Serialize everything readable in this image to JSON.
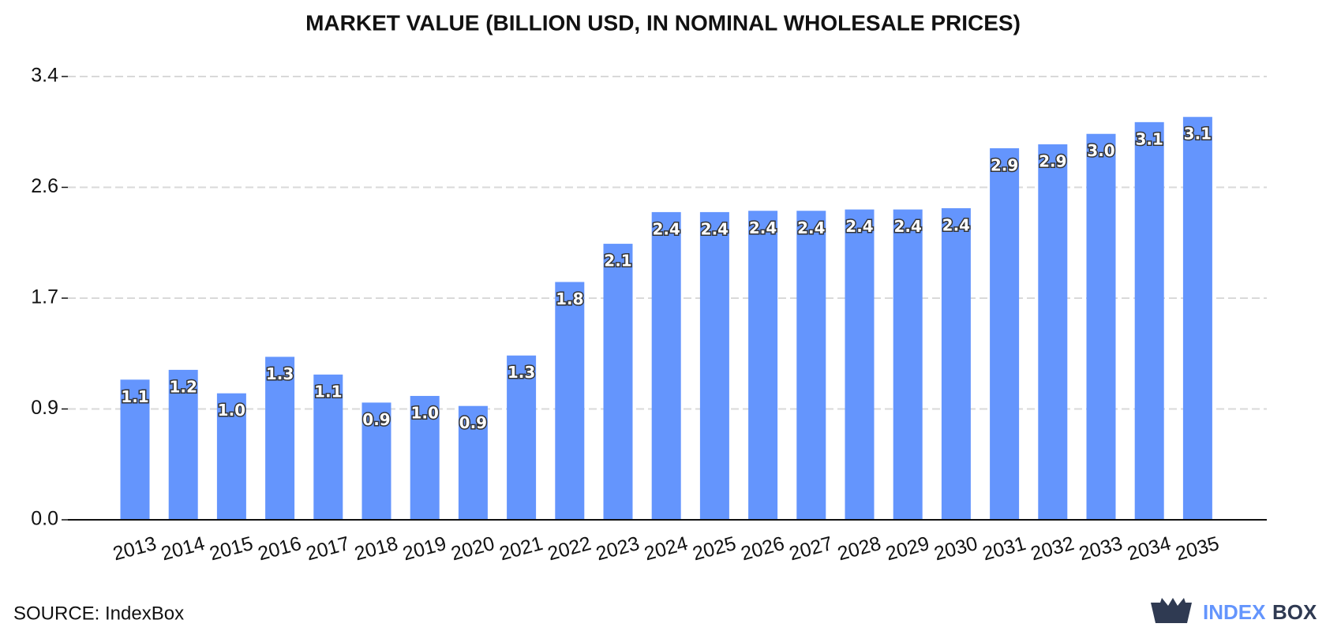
{
  "chart_data": {
    "type": "bar",
    "title": "MARKET VALUE (BILLION USD, IN NOMINAL WHOLESALE PRICES)",
    "categories": [
      "2013",
      "2014",
      "2015",
      "2016",
      "2017",
      "2018",
      "2019",
      "2020",
      "2021",
      "2022",
      "2023",
      "2024",
      "2025",
      "2026",
      "2027",
      "2028",
      "2029",
      "2030",
      "2031",
      "2032",
      "2033",
      "2034",
      "2035"
    ],
    "values": [
      1.075,
      1.15,
      0.97,
      1.25,
      1.114,
      0.899,
      0.95,
      0.873,
      1.26,
      1.824,
      2.117,
      2.36,
      2.36,
      2.37,
      2.37,
      2.38,
      2.38,
      2.39,
      2.85,
      2.88,
      2.96,
      3.05,
      3.09
    ],
    "value_labels": [
      "1.1",
      "1.2",
      "1.0",
      "1.3",
      "1.1",
      "0.9",
      "1.0",
      "0.9",
      "1.3",
      "1.8",
      "2.1",
      "2.4",
      "2.4",
      "2.4",
      "2.4",
      "2.4",
      "2.4",
      "2.4",
      "2.9",
      "2.9",
      "3.0",
      "3.1",
      "3.1"
    ],
    "color": "#6495fd",
    "ylim": [
      0,
      3.4
    ],
    "yticks": [
      {
        "value": 0,
        "label": "0.0"
      },
      {
        "value": 0.85,
        "label": "0.9"
      },
      1.7,
      {
        "value": 2.55,
        "label": "2.6"
      },
      3.4
    ],
    "grid": true,
    "source": "SOURCE: IndexBox",
    "logo": [
      "INDEX",
      "BOX"
    ]
  }
}
